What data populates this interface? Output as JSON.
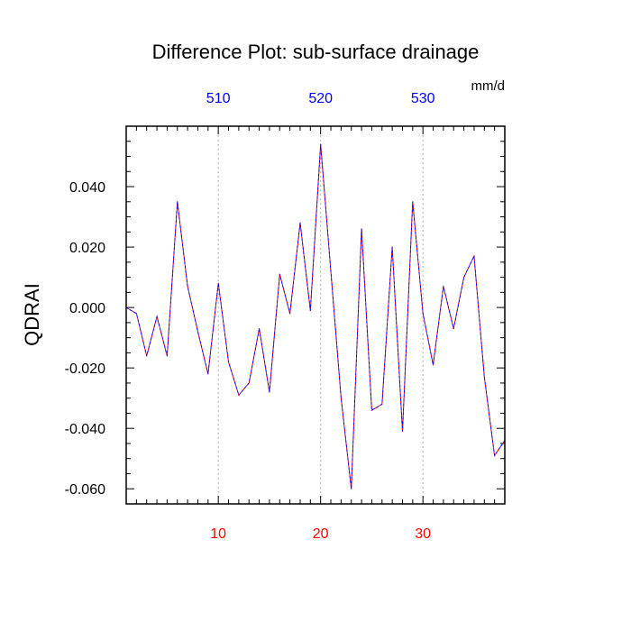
{
  "chart_data": {
    "type": "line",
    "title": "Difference Plot: sub-surface drainage",
    "units": "mm/d",
    "ylabel": "QDRAI",
    "xlabel": "",
    "xlim": [
      1,
      38
    ],
    "ylim": [
      -0.065,
      0.06
    ],
    "x": [
      1,
      2,
      3,
      4,
      5,
      6,
      7,
      8,
      9,
      10,
      11,
      12,
      13,
      14,
      15,
      16,
      17,
      18,
      19,
      20,
      21,
      22,
      23,
      24,
      25,
      26,
      27,
      28,
      29,
      30,
      31,
      32,
      33,
      34,
      35,
      36,
      37,
      38
    ],
    "series": [
      {
        "color_dash": "#0000ff",
        "color_dash2": "#ff0000",
        "values": [
          0.0,
          -0.002,
          -0.016,
          -0.003,
          -0.016,
          0.035,
          0.007,
          -0.008,
          -0.022,
          0.008,
          -0.018,
          -0.029,
          -0.025,
          -0.007,
          -0.028,
          0.011,
          -0.002,
          0.028,
          -0.001,
          0.054,
          0.012,
          -0.03,
          -0.06,
          0.026,
          -0.034,
          -0.032,
          0.02,
          -0.041,
          0.035,
          -0.002,
          -0.019,
          0.007,
          -0.007,
          0.01,
          0.017,
          -0.023,
          -0.049,
          -0.044
        ]
      }
    ],
    "yticks": [
      {
        "value": 0.04,
        "label": "0.040"
      },
      {
        "value": 0.02,
        "label": "0.020"
      },
      {
        "value": 0.0,
        "label": "0.000"
      },
      {
        "value": -0.02,
        "label": "-0.020"
      },
      {
        "value": -0.04,
        "label": "-0.040"
      },
      {
        "value": -0.06,
        "label": "-0.060"
      }
    ],
    "xticks_bottom": [
      {
        "value": 10,
        "label": "10"
      },
      {
        "value": 20,
        "label": "20"
      },
      {
        "value": 30,
        "label": "30"
      }
    ],
    "xticks_top": [
      {
        "value": 10,
        "label": "510"
      },
      {
        "value": 20,
        "label": "520"
      },
      {
        "value": 30,
        "label": "530"
      }
    ],
    "grid": "vertical dotted at labeled x ticks",
    "colors": {
      "top_axis_labels": "#0000ff",
      "bottom_axis_labels": "#ff0000"
    }
  }
}
